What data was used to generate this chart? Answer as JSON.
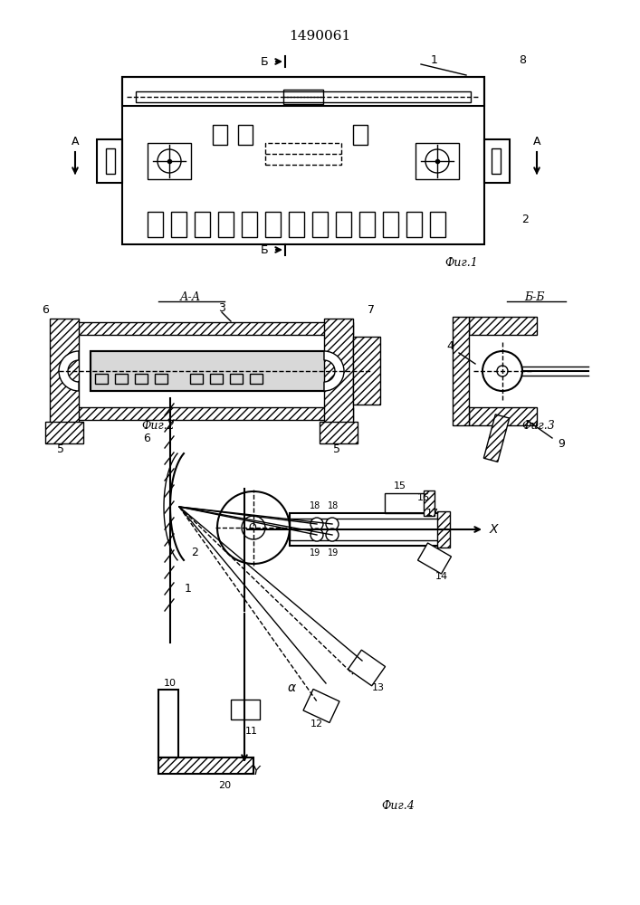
{
  "title": "1490061",
  "background_color": "#ffffff",
  "line_color": "#000000",
  "fig1_caption": "Фиг.1",
  "fig2_caption": "Фиг.2",
  "fig3_caption": "Фиг.3",
  "fig4_caption": "Фиг.4",
  "section_aa": "А-А",
  "section_bb": "Б-Б"
}
